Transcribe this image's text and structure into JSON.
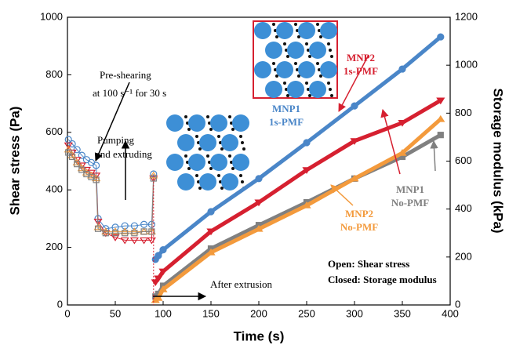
{
  "chart_data": {
    "type": "line",
    "x_label": "Time (s)",
    "y_label": "Shear stress (Pa)",
    "y2_label": "Storage modulus (kPa)",
    "xlim": [
      0,
      400
    ],
    "xticks": [
      0,
      50,
      100,
      150,
      200,
      250,
      300,
      350,
      400
    ],
    "ylim": [
      0,
      1000
    ],
    "yticks": [
      0,
      200,
      400,
      600,
      800,
      1000
    ],
    "y2lim": [
      0,
      1200
    ],
    "y2ticks": [
      0,
      200,
      400,
      600,
      800,
      1000,
      1200
    ],
    "series": [
      {
        "color": "#4a86c8",
        "marker": "circle",
        "fill": "open",
        "axis": "y",
        "x": [
          1,
          5,
          10,
          15,
          20,
          25,
          30,
          32,
          40,
          50,
          60,
          70,
          80,
          88,
          90
        ],
        "values": [
          575,
          560,
          540,
          520,
          505,
          495,
          485,
          300,
          265,
          270,
          275,
          275,
          280,
          280,
          455
        ]
      },
      {
        "color": "#d62030",
        "marker": "triangle-down",
        "fill": "open",
        "axis": "y",
        "x": [
          1,
          5,
          10,
          15,
          20,
          25,
          30,
          32,
          40,
          50,
          60,
          70,
          80,
          88,
          90
        ],
        "values": [
          555,
          530,
          505,
          485,
          470,
          460,
          450,
          290,
          250,
          235,
          225,
          225,
          225,
          225,
          440
        ]
      },
      {
        "color": "#f39a3c",
        "marker": "triangle-up",
        "fill": "open",
        "axis": "y",
        "x": [
          1,
          5,
          10,
          15,
          20,
          25,
          30,
          32,
          40,
          50,
          60,
          70,
          80,
          88,
          90
        ],
        "values": [
          540,
          520,
          495,
          475,
          460,
          450,
          440,
          270,
          255,
          255,
          255,
          255,
          255,
          255,
          450
        ]
      },
      {
        "color": "#808080",
        "marker": "square",
        "fill": "open",
        "axis": "y",
        "x": [
          1,
          5,
          10,
          15,
          20,
          25,
          30,
          32,
          40,
          50,
          60,
          70,
          80,
          88,
          90
        ],
        "values": [
          530,
          515,
          490,
          470,
          455,
          445,
          435,
          265,
          250,
          250,
          250,
          250,
          255,
          255,
          440
        ]
      },
      {
        "color": "#4a86c8",
        "marker": "circle",
        "fill": "closed",
        "axis": "y2",
        "label_lines": [
          "MNP1",
          "1s-PMF"
        ],
        "x": [
          92,
          95,
          100,
          150,
          200,
          250,
          300,
          350,
          390
        ],
        "values": [
          190,
          206,
          230,
          389,
          527,
          677,
          830,
          984,
          1118
        ]
      },
      {
        "color": "#d62030",
        "marker": "triangle-down",
        "fill": "closed",
        "axis": "y2",
        "label_lines": [
          "MNP2",
          "1s-PMF"
        ],
        "x": [
          92,
          95,
          100,
          150,
          200,
          250,
          300,
          350,
          390
        ],
        "values": [
          95,
          111,
          140,
          307,
          428,
          563,
          684,
          760,
          853
        ]
      },
      {
        "color": "#808080",
        "marker": "square",
        "fill": "closed",
        "axis": "y2",
        "label_lines": [
          "MNP1",
          "No-PMF"
        ],
        "x": [
          92,
          95,
          100,
          150,
          200,
          250,
          300,
          350,
          390
        ],
        "values": [
          35,
          46,
          80,
          235,
          333,
          428,
          527,
          618,
          709
        ]
      },
      {
        "color": "#f39a3c",
        "marker": "triangle-up",
        "fill": "closed",
        "axis": "y2",
        "label_lines": [
          "MNP2",
          "No-PMF"
        ],
        "x": [
          92,
          95,
          100,
          150,
          200,
          250,
          300,
          350,
          390
        ],
        "values": [
          20,
          29,
          65,
          219,
          317,
          415,
          527,
          634,
          775
        ]
      }
    ],
    "annotations": {
      "preshear": [
        "Pre-shearing",
        "at 100 s⁻¹ for 30 s"
      ],
      "pumping": [
        "Pumping",
        "and extruding"
      ],
      "after": "After extrusion",
      "legend_note": [
        "Open: Shear stress",
        "Closed: Storage modulus"
      ]
    }
  }
}
